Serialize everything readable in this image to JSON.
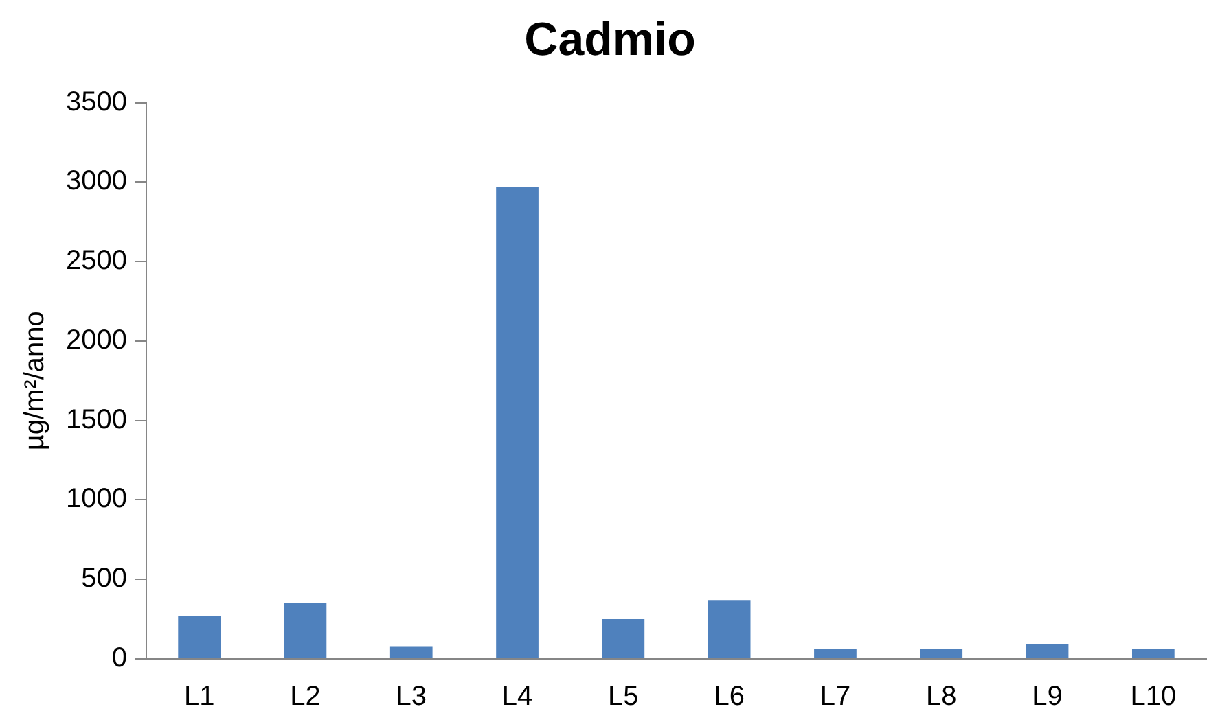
{
  "chart_data": {
    "type": "bar",
    "title": "Cadmio",
    "ylabel": "µg/m²/anno",
    "categories": [
      "L1",
      "L2",
      "L3",
      "L4",
      "L5",
      "L6",
      "L7",
      "L8",
      "L9",
      "L10"
    ],
    "values": [
      270,
      350,
      80,
      2970,
      250,
      370,
      65,
      65,
      95,
      65
    ],
    "color": "#4f81bd",
    "ylim": [
      0,
      3500
    ],
    "yticks": [
      0,
      500,
      1000,
      1500,
      2000,
      2500,
      3000,
      3500
    ],
    "grid": false,
    "legend": false
  }
}
